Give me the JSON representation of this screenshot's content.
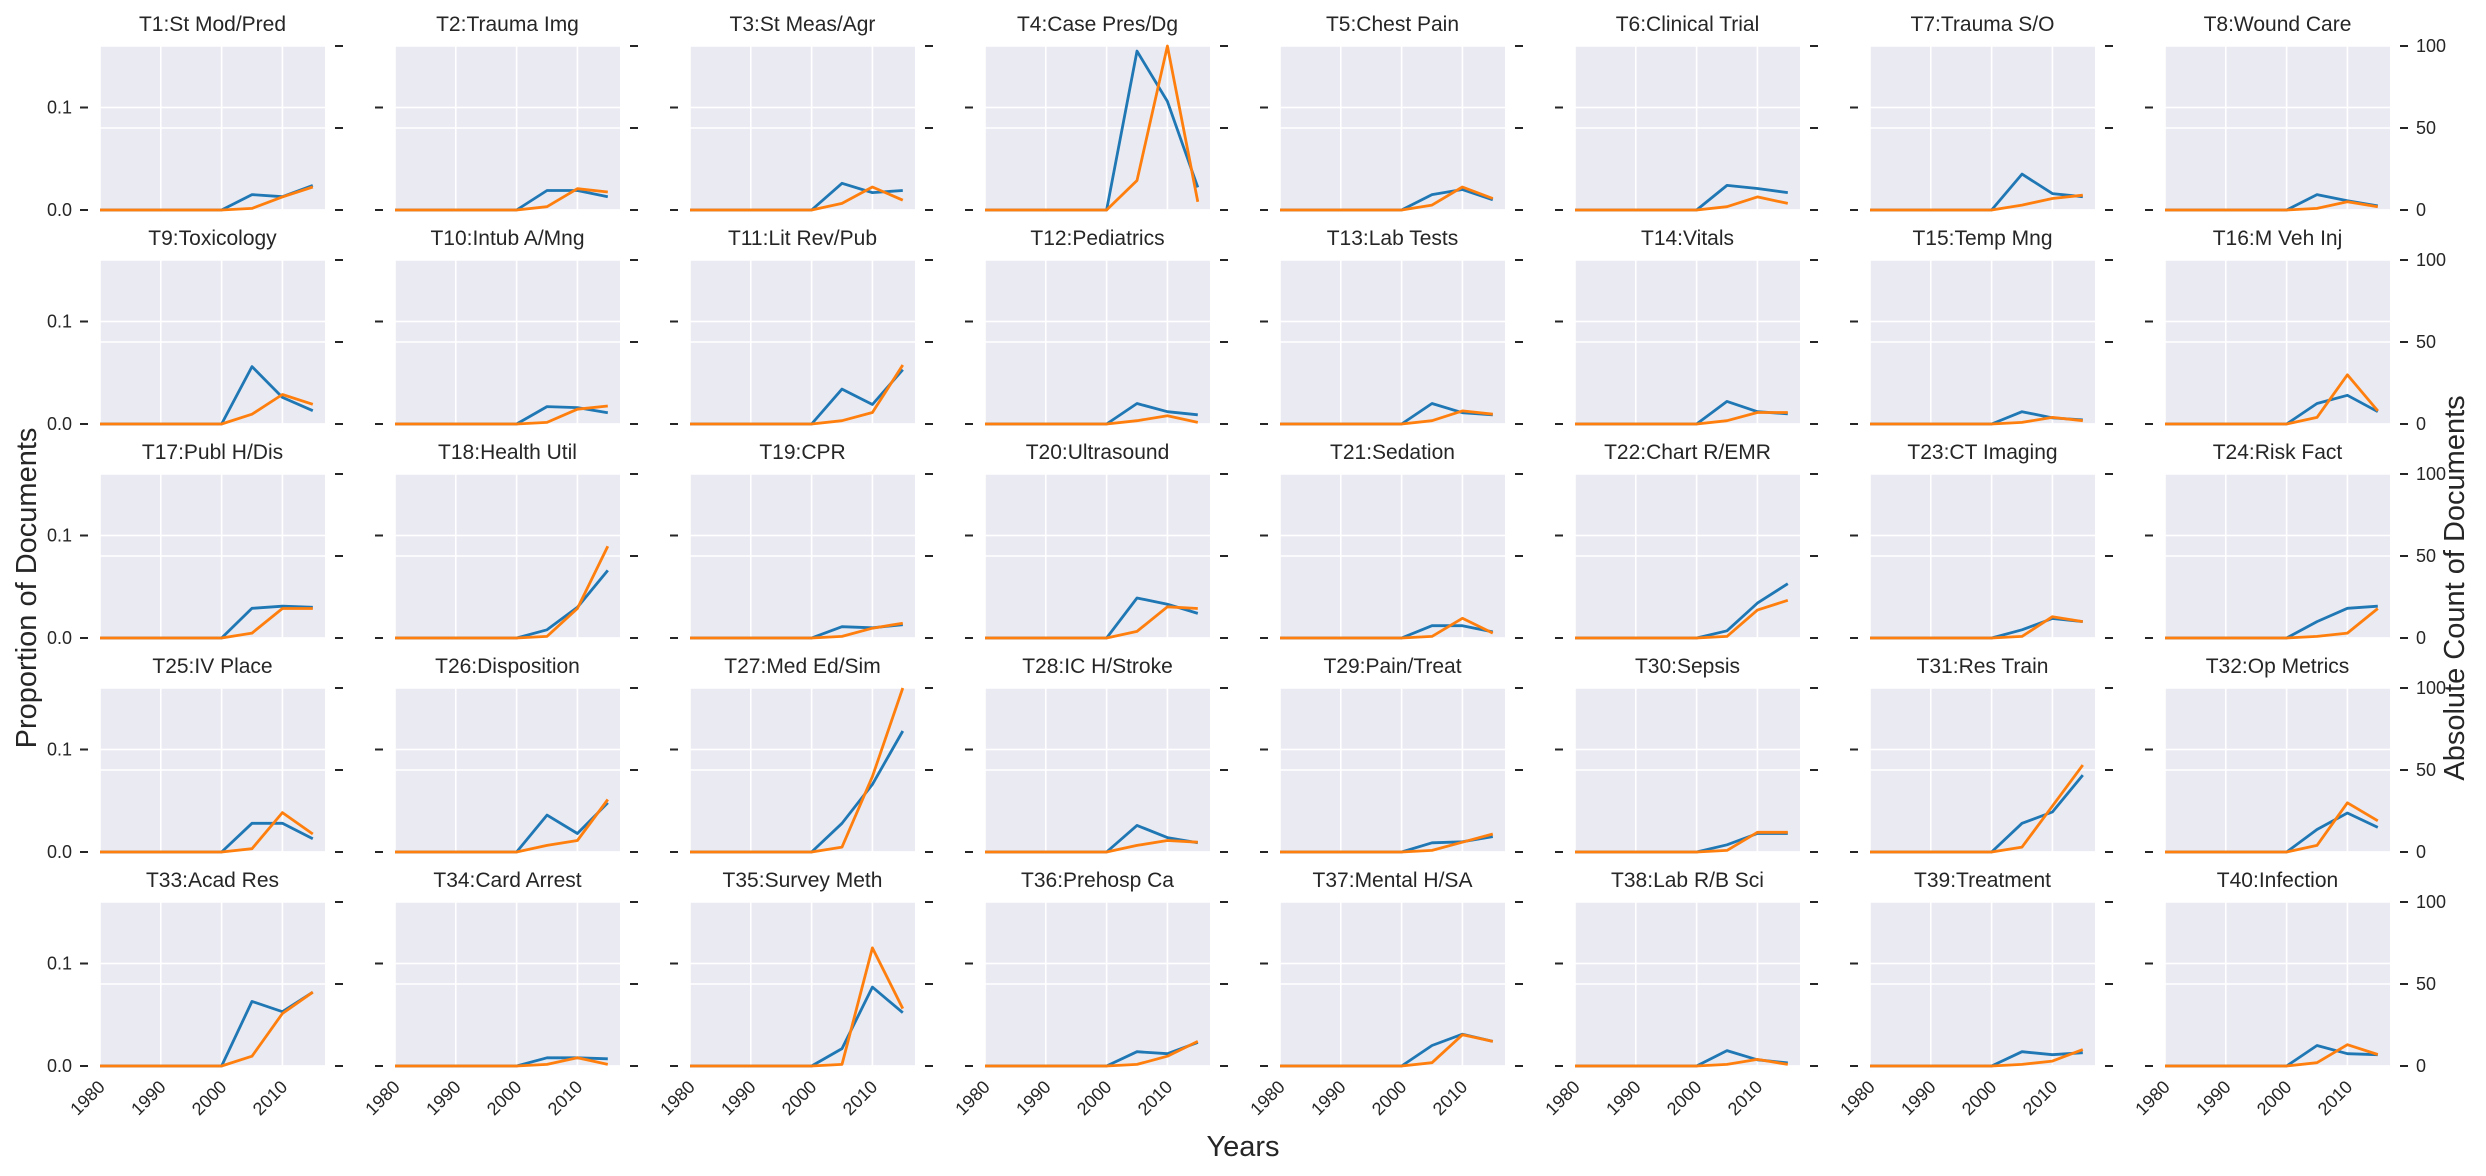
{
  "chart_data": {
    "type": "line",
    "layout": "small-multiples",
    "xlabel": "Years",
    "ylabel_left": "Proportion of Documents",
    "ylabel_right": "Absolute Count of Documents",
    "x": [
      1980,
      1985,
      1990,
      1995,
      2000,
      2005,
      2010,
      2015
    ],
    "xlim": [
      1980,
      2017
    ],
    "xticks": [
      1980,
      1990,
      2000,
      2010
    ],
    "ylim_left": [
      0,
      0.16
    ],
    "yticks_left": [
      0.0,
      0.1
    ],
    "ytick_labels_left": [
      "0.0",
      "0.1"
    ],
    "ylim_right": [
      0,
      100
    ],
    "yticks_right": [
      0,
      50,
      100
    ],
    "ytick_labels_right": [
      "0",
      "50",
      "100"
    ],
    "grid": true,
    "colors": {
      "proportion": "#1f77b4",
      "count": "#ff7f0e",
      "panel_bg": "#eaeaf2",
      "grid": "#ffffff"
    },
    "panels": [
      {
        "title": "T1:St Mod/Pred",
        "proportion": [
          0,
          0,
          0,
          0,
          0,
          0.015,
          0.013,
          0.024
        ],
        "count": [
          0,
          0,
          0,
          0,
          0,
          1,
          8,
          14
        ]
      },
      {
        "title": "T2:Trauma Img",
        "proportion": [
          0,
          0,
          0,
          0,
          0,
          0.019,
          0.019,
          0.013
        ],
        "count": [
          0,
          0,
          0,
          0,
          0,
          2,
          13,
          11
        ]
      },
      {
        "title": "T3:St Meas/Agr",
        "proportion": [
          0,
          0,
          0,
          0,
          0,
          0.026,
          0.017,
          0.019
        ],
        "count": [
          0,
          0,
          0,
          0,
          0,
          4,
          14,
          6
        ]
      },
      {
        "title": "T4:Case Pres/Dg",
        "proportion": [
          0,
          0,
          0,
          0,
          0,
          0.155,
          0.106,
          0.022
        ],
        "count": [
          0,
          0,
          0,
          0,
          0,
          18,
          100,
          5
        ]
      },
      {
        "title": "T5:Chest Pain",
        "proportion": [
          0,
          0,
          0,
          0,
          0,
          0.015,
          0.02,
          0.01
        ],
        "count": [
          0,
          0,
          0,
          0,
          0,
          3,
          14,
          7
        ]
      },
      {
        "title": "T6:Clinical Trial",
        "proportion": [
          0,
          0,
          0,
          0,
          0,
          0.024,
          0.021,
          0.017
        ],
        "count": [
          0,
          0,
          0,
          0,
          0,
          2,
          8,
          4
        ]
      },
      {
        "title": "T7:Trauma S/O",
        "proportion": [
          0,
          0,
          0,
          0,
          0,
          0.035,
          0.016,
          0.013
        ],
        "count": [
          0,
          0,
          0,
          0,
          0,
          3,
          7,
          9
        ]
      },
      {
        "title": "T8:Wound Care",
        "proportion": [
          0,
          0,
          0,
          0,
          0,
          0.015,
          0.009,
          0.004
        ],
        "count": [
          0,
          0,
          0,
          0,
          0,
          1,
          5,
          2
        ]
      },
      {
        "title": "T9:Toxicology",
        "proportion": [
          0,
          0,
          0,
          0,
          0,
          0.056,
          0.026,
          0.013
        ],
        "count": [
          0,
          0,
          0,
          0,
          0,
          6,
          18,
          12
        ]
      },
      {
        "title": "T10:Intub A/Mng",
        "proportion": [
          0,
          0,
          0,
          0,
          0,
          0.017,
          0.016,
          0.011
        ],
        "count": [
          0,
          0,
          0,
          0,
          0,
          1,
          9,
          11
        ]
      },
      {
        "title": "T11:Lit Rev/Pub",
        "proportion": [
          0,
          0,
          0,
          0,
          0,
          0.034,
          0.019,
          0.053
        ],
        "count": [
          0,
          0,
          0,
          0,
          0,
          2,
          7,
          36
        ]
      },
      {
        "title": "T12:Pediatrics",
        "proportion": [
          0,
          0,
          0,
          0,
          0,
          0.02,
          0.012,
          0.009
        ],
        "count": [
          0,
          0,
          0,
          0,
          0,
          2,
          5,
          1
        ]
      },
      {
        "title": "T13:Lab Tests",
        "proportion": [
          0,
          0,
          0,
          0,
          0,
          0.02,
          0.011,
          0.009
        ],
        "count": [
          0,
          0,
          0,
          0,
          0,
          2,
          8,
          6
        ]
      },
      {
        "title": "T14:Vitals",
        "proportion": [
          0,
          0,
          0,
          0,
          0,
          0.022,
          0.012,
          0.01
        ],
        "count": [
          0,
          0,
          0,
          0,
          0,
          2,
          7,
          7
        ]
      },
      {
        "title": "T15:Temp Mng",
        "proportion": [
          0,
          0,
          0,
          0,
          0,
          0.012,
          0.006,
          0.004
        ],
        "count": [
          0,
          0,
          0,
          0,
          0,
          1,
          4,
          2
        ]
      },
      {
        "title": "T16:M Veh Inj",
        "proportion": [
          0,
          0,
          0,
          0,
          0,
          0.02,
          0.028,
          0.012
        ],
        "count": [
          0,
          0,
          0,
          0,
          0,
          4,
          30,
          8
        ]
      },
      {
        "title": "T17:Publ H/Dis",
        "proportion": [
          0,
          0,
          0,
          0,
          0,
          0.029,
          0.031,
          0.03
        ],
        "count": [
          0,
          0,
          0,
          0,
          0,
          3,
          18,
          18
        ]
      },
      {
        "title": "T18:Health Util",
        "proportion": [
          0,
          0,
          0,
          0,
          0,
          0.008,
          0.03,
          0.066
        ],
        "count": [
          0,
          0,
          0,
          0,
          0,
          1,
          18,
          56
        ]
      },
      {
        "title": "T19:CPR",
        "proportion": [
          0,
          0,
          0,
          0,
          0,
          0.011,
          0.01,
          0.013
        ],
        "count": [
          0,
          0,
          0,
          0,
          0,
          1,
          6,
          9
        ]
      },
      {
        "title": "T20:Ultrasound",
        "proportion": [
          0,
          0,
          0,
          0,
          0,
          0.039,
          0.033,
          0.024
        ],
        "count": [
          0,
          0,
          0,
          0,
          0,
          4,
          19,
          18
        ]
      },
      {
        "title": "T21:Sedation",
        "proportion": [
          0,
          0,
          0,
          0,
          0,
          0.012,
          0.012,
          0.006
        ],
        "count": [
          0,
          0,
          0,
          0,
          0,
          1,
          12,
          3
        ]
      },
      {
        "title": "T22:Chart R/EMR",
        "proportion": [
          0,
          0,
          0,
          0,
          0,
          0.007,
          0.034,
          0.053
        ],
        "count": [
          0,
          0,
          0,
          0,
          0,
          1,
          17,
          23
        ]
      },
      {
        "title": "T23:CT Imaging",
        "proportion": [
          0,
          0,
          0,
          0,
          0,
          0.008,
          0.019,
          0.016
        ],
        "count": [
          0,
          0,
          0,
          0,
          0,
          1,
          13,
          10
        ]
      },
      {
        "title": "T24:Risk Fact",
        "proportion": [
          0,
          0,
          0,
          0,
          0,
          0.016,
          0.029,
          0.031
        ],
        "count": [
          0,
          0,
          0,
          0,
          0,
          1,
          3,
          18
        ]
      },
      {
        "title": "T25:IV Place",
        "proportion": [
          0,
          0,
          0,
          0,
          0,
          0.028,
          0.028,
          0.013
        ],
        "count": [
          0,
          0,
          0,
          0,
          0,
          2,
          24,
          11
        ]
      },
      {
        "title": "T26:Disposition",
        "proportion": [
          0,
          0,
          0,
          0,
          0,
          0.036,
          0.018,
          0.048
        ],
        "count": [
          0,
          0,
          0,
          0,
          0,
          4,
          7,
          32
        ]
      },
      {
        "title": "T27:Med Ed/Sim",
        "proportion": [
          0,
          0,
          0,
          0,
          0,
          0.028,
          0.066,
          0.118
        ],
        "count": [
          0,
          0,
          0,
          0,
          0,
          3,
          46,
          100
        ]
      },
      {
        "title": "T28:IC H/Stroke",
        "proportion": [
          0,
          0,
          0,
          0,
          0,
          0.026,
          0.014,
          0.009
        ],
        "count": [
          0,
          0,
          0,
          0,
          0,
          4,
          7,
          6
        ]
      },
      {
        "title": "T29:Pain/Treat",
        "proportion": [
          0,
          0,
          0,
          0,
          0,
          0.009,
          0.01,
          0.015
        ],
        "count": [
          0,
          0,
          0,
          0,
          0,
          1,
          6,
          11
        ]
      },
      {
        "title": "T30:Sepsis",
        "proportion": [
          0,
          0,
          0,
          0,
          0,
          0.007,
          0.018,
          0.018
        ],
        "count": [
          0,
          0,
          0,
          0,
          0,
          1,
          12,
          12
        ]
      },
      {
        "title": "T31:Res Train",
        "proportion": [
          0,
          0,
          0,
          0,
          0,
          0.028,
          0.039,
          0.075
        ],
        "count": [
          0,
          0,
          0,
          0,
          0,
          3,
          28,
          53
        ]
      },
      {
        "title": "T32:Op Metrics",
        "proportion": [
          0,
          0,
          0,
          0,
          0,
          0.022,
          0.038,
          0.024
        ],
        "count": [
          0,
          0,
          0,
          0,
          0,
          4,
          30,
          19
        ]
      },
      {
        "title": "T33:Acad Res",
        "proportion": [
          0,
          0,
          0,
          0,
          0,
          0.063,
          0.053,
          0.072
        ],
        "count": [
          0,
          0,
          0,
          0,
          0,
          6,
          32,
          45
        ]
      },
      {
        "title": "T34:Card Arrest",
        "proportion": [
          0,
          0,
          0,
          0,
          0,
          0.008,
          0.008,
          0.007
        ],
        "count": [
          0,
          0,
          0,
          0,
          0,
          1,
          5,
          1
        ]
      },
      {
        "title": "T35:Survey Meth",
        "proportion": [
          0,
          0,
          0,
          0,
          0,
          0.017,
          0.077,
          0.052
        ],
        "count": [
          0,
          0,
          0,
          0,
          0,
          1,
          72,
          35
        ]
      },
      {
        "title": "T36:Prehosp Ca",
        "proportion": [
          0,
          0,
          0,
          0,
          0,
          0.014,
          0.012,
          0.023
        ],
        "count": [
          0,
          0,
          0,
          0,
          0,
          1,
          6,
          15
        ]
      },
      {
        "title": "T37:Mental H/SA",
        "proportion": [
          0,
          0,
          0,
          0,
          0,
          0.02,
          0.031,
          0.024
        ],
        "count": [
          0,
          0,
          0,
          0,
          0,
          2,
          19,
          15
        ]
      },
      {
        "title": "T38:Lab R/B Sci",
        "proportion": [
          0,
          0,
          0,
          0,
          0,
          0.015,
          0.006,
          0.003
        ],
        "count": [
          0,
          0,
          0,
          0,
          0,
          1,
          4,
          1
        ]
      },
      {
        "title": "T39:Treatment",
        "proportion": [
          0,
          0,
          0,
          0,
          0,
          0.014,
          0.011,
          0.013
        ],
        "count": [
          0,
          0,
          0,
          0,
          0,
          1,
          3,
          10
        ]
      },
      {
        "title": "T40:Infection",
        "proportion": [
          0,
          0,
          0,
          0,
          0,
          0.02,
          0.012,
          0.011
        ],
        "count": [
          0,
          0,
          0,
          0,
          0,
          2,
          13,
          7
        ]
      }
    ]
  }
}
